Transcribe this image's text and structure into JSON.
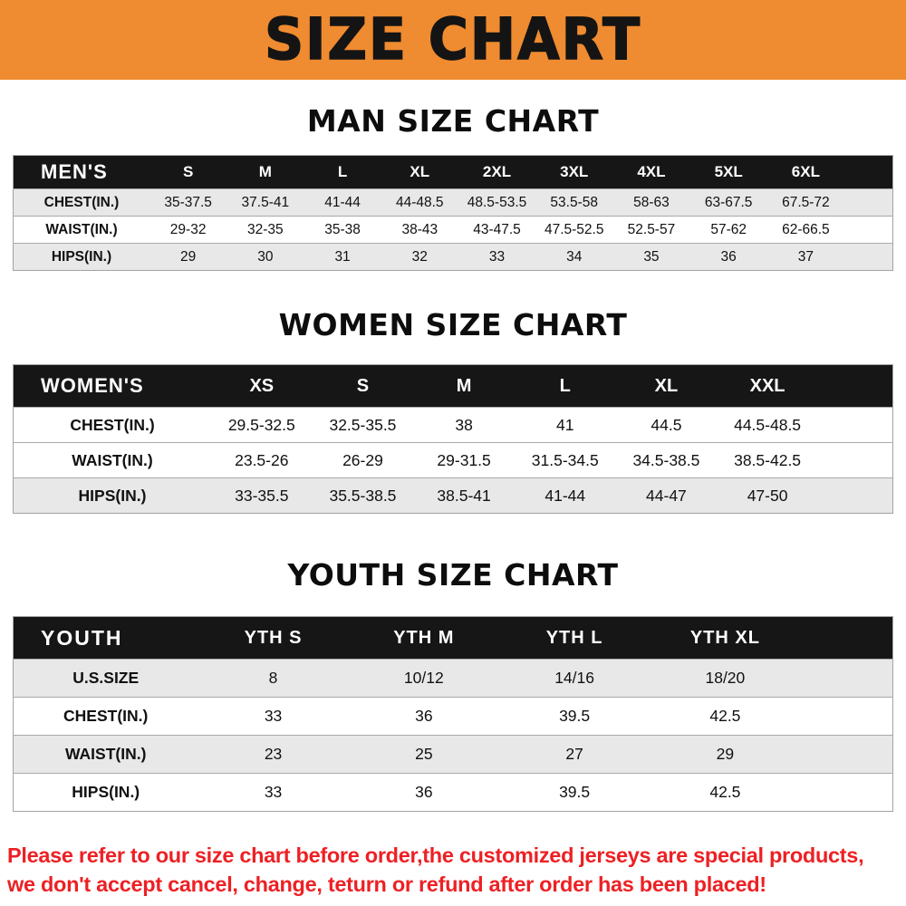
{
  "banner": {
    "title": "SIZE CHART"
  },
  "sections": {
    "man": {
      "heading": "MAN SIZE CHART"
    },
    "women": {
      "heading": "WOMEN SIZE CHART"
    },
    "youth": {
      "heading": "YOUTH SIZE CHART"
    }
  },
  "tables": {
    "men": {
      "corner_label": "MEN'S",
      "columns": [
        "S",
        "M",
        "L",
        "XL",
        "2XL",
        "3XL",
        "4XL",
        "5XL",
        "6XL"
      ],
      "rows": [
        {
          "label": "CHEST(IN.)",
          "shaded": true,
          "values": [
            "35-37.5",
            "37.5-41",
            "41-44",
            "44-48.5",
            "48.5-53.5",
            "53.5-58",
            "58-63",
            "63-67.5",
            "67.5-72"
          ]
        },
        {
          "label": "WAIST(IN.)",
          "shaded": false,
          "values": [
            "29-32",
            "32-35",
            "35-38",
            "38-43",
            "43-47.5",
            "47.5-52.5",
            "52.5-57",
            "57-62",
            "62-66.5"
          ]
        },
        {
          "label": "HIPS(IN.)",
          "shaded": true,
          "values": [
            "29",
            "30",
            "31",
            "32",
            "33",
            "34",
            "35",
            "36",
            "37"
          ]
        }
      ]
    },
    "women": {
      "corner_label": "WOMEN'S",
      "columns": [
        "XS",
        "S",
        "M",
        "L",
        "XL",
        "XXL"
      ],
      "rows": [
        {
          "label": "CHEST(IN.)",
          "shaded": false,
          "values": [
            "29.5-32.5",
            "32.5-35.5",
            "38",
            "41",
            "44.5",
            "44.5-48.5"
          ]
        },
        {
          "label": "WAIST(IN.)",
          "shaded": false,
          "values": [
            "23.5-26",
            "26-29",
            "29-31.5",
            "31.5-34.5",
            "34.5-38.5",
            "38.5-42.5"
          ]
        },
        {
          "label": "HIPS(IN.)",
          "shaded": true,
          "values": [
            "33-35.5",
            "35.5-38.5",
            "38.5-41",
            "41-44",
            "44-47",
            "47-50"
          ]
        }
      ]
    },
    "youth": {
      "corner_label": "YOUTH",
      "columns": [
        "YTH S",
        "YTH M",
        "YTH L",
        "YTH XL"
      ],
      "rows": [
        {
          "label": "U.S.SIZE",
          "shaded": true,
          "values": [
            "8",
            "10/12",
            "14/16",
            "18/20"
          ]
        },
        {
          "label": "CHEST(IN.)",
          "shaded": false,
          "values": [
            "33",
            "36",
            "39.5",
            "42.5"
          ]
        },
        {
          "label": "WAIST(IN.)",
          "shaded": true,
          "values": [
            "23",
            "25",
            "27",
            "29"
          ]
        },
        {
          "label": "HIPS(IN.)",
          "shaded": false,
          "values": [
            "33",
            "36",
            "39.5",
            "42.5"
          ]
        }
      ]
    }
  },
  "disclaimer": {
    "line1": "Please refer to our size chart before order,the customized jerseys are special products,",
    "line2": "we don't accept cancel, change, teturn or refund after order has been placed!"
  },
  "palette": {
    "banner_orange": "#EF8B30",
    "header_black": "#161616",
    "row_shade_gray": "#E8E8E8",
    "disclaimer_red": "#ED2024"
  }
}
